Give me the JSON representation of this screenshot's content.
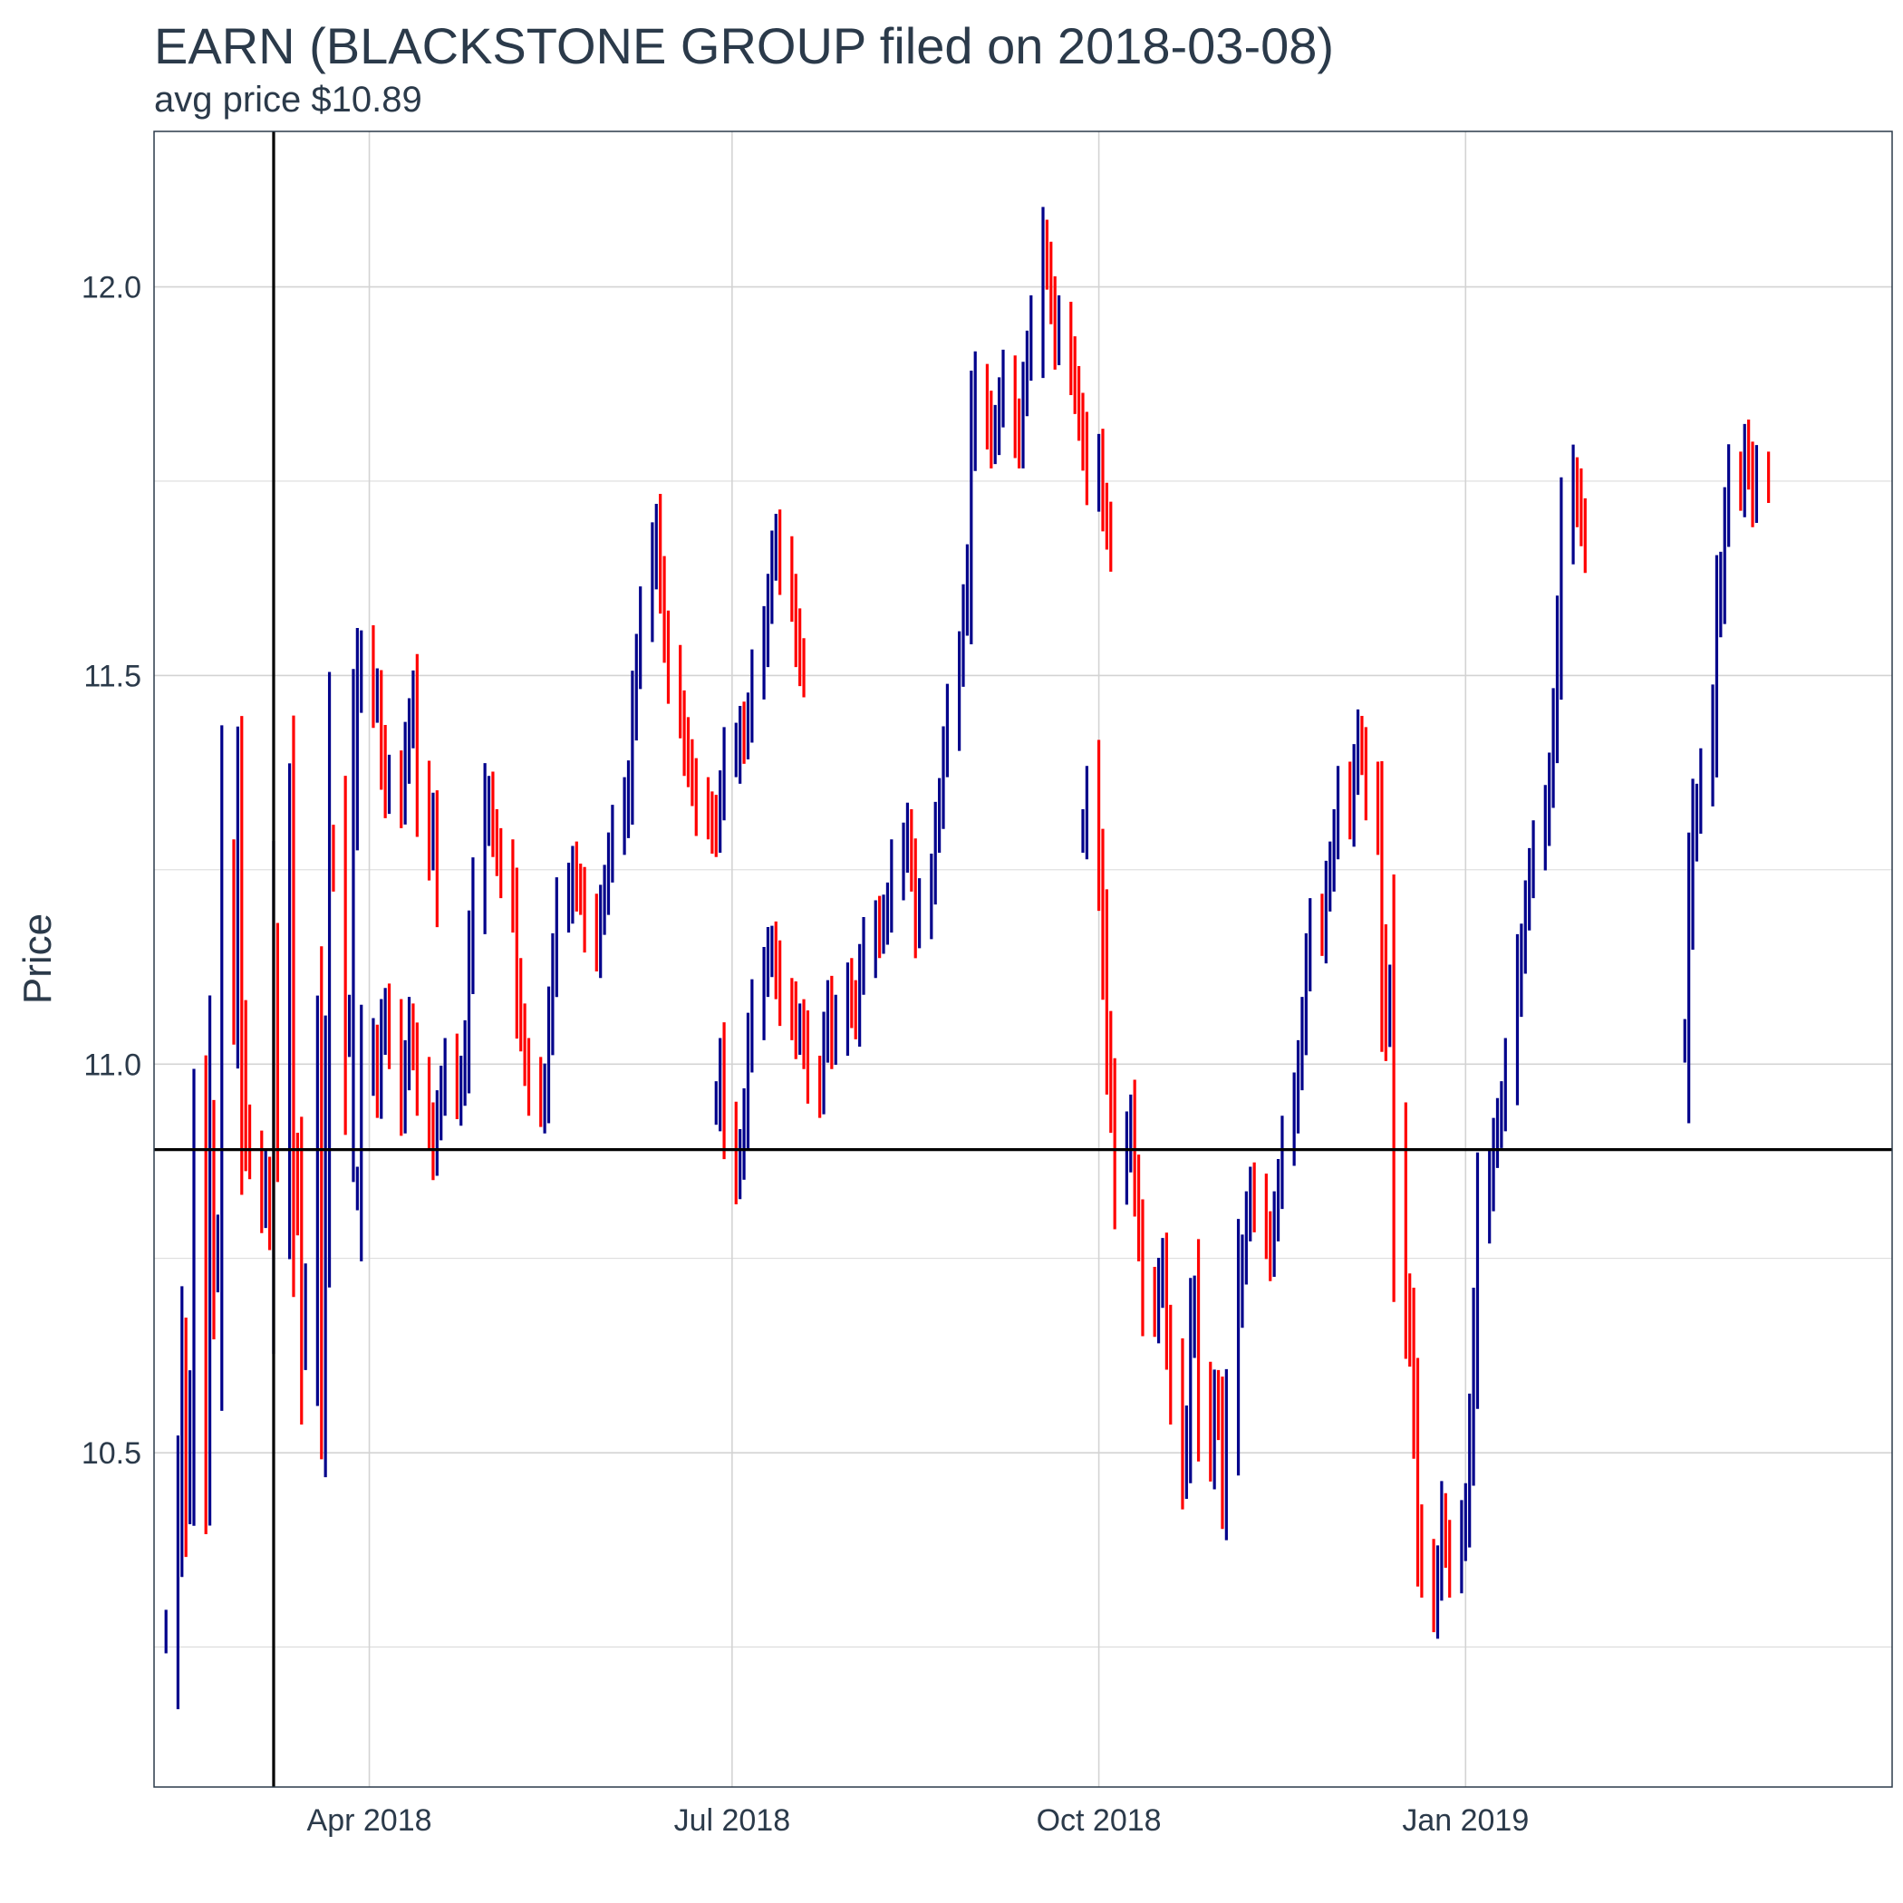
{
  "chart_data": {
    "type": "ohlc",
    "title": "EARN (BLACKSTONE GROUP filed on 2018-03-08)",
    "subtitle": "avg price $10.89",
    "ylabel": "Price",
    "xlabel": "",
    "x_range": [
      "2018-02-06",
      "2019-04-18"
    ],
    "ylim": [
      10.07,
      12.2
    ],
    "y_ticks": [
      10.5,
      11.0,
      11.5,
      12.0
    ],
    "y_tick_labels": [
      "10.5",
      "11.0",
      "11.5",
      "12.0"
    ],
    "x_ticks": [
      "2018-04-01",
      "2018-07-01",
      "2018-10-01",
      "2019-01-01"
    ],
    "x_tick_labels": [
      "Apr 2018",
      "Jul 2018",
      "Oct 2018",
      "Jan 2019"
    ],
    "grid": true,
    "vline_date": "2018-03-08",
    "hline_value": 10.89,
    "colors": {
      "up": "#00008b",
      "down": "#ff0000",
      "reference": "#000000",
      "grid": "#d3d3d3",
      "frame": "#2b3a4a"
    },
    "segments": [
      {
        "start": "2018-02-09",
        "values": [
          10.27,
          10.43,
          10.6,
          10.46,
          10.55,
          10.85,
          10.57,
          10.88,
          10.74,
          10.77,
          11.22,
          11.1,
          11.3,
          11.02,
          10.92,
          10.88,
          10.82,
          10.85,
          10.8,
          11.1,
          10.93,
          11.22,
          10.88,
          10.82,
          10.64,
          10.71,
          10.95,
          10.65,
          10.92,
          11.28,
          11.25,
          11.04,
          11.05,
          11.35,
          11.48,
          11.53,
          11.47,
          11.47,
          11.4,
          11.35,
          11.37,
          11.34,
          11.4,
          11.44,
          11.47,
          11.35,
          11.28,
          11.31,
          11.23
        ]
      },
      {
        "start": "2018-03-29",
        "values": [
          10.84,
          10.99,
          11.02,
          10.97,
          11.04,
          11.07,
          11.03,
          10.95,
          11.0,
          11.05,
          11.02,
          10.97,
          10.92,
          10.89,
          10.93,
          10.97,
          11.0,
          10.96,
          10.98,
          11.02,
          11.14,
          11.22,
          11.32,
          11.34,
          11.3,
          11.27,
          11.25,
          11.2,
          11.1,
          11.05,
          11.0,
          10.97,
          10.95,
          10.97,
          11.05,
          11.13,
          11.2,
          11.22,
          11.25,
          11.23,
          11.22,
          11.18,
          11.15,
          11.2,
          11.22,
          11.27,
          11.3,
          11.33,
          11.36,
          11.45,
          11.52,
          11.58,
          11.65,
          11.69,
          11.62,
          11.55,
          11.5,
          11.45,
          11.41,
          11.39,
          11.36,
          11.33,
          11.32,
          11.31,
          11.3,
          11.35,
          11.4,
          11.4,
          11.43,
          11.42,
          11.45,
          11.5,
          11.55,
          11.6,
          11.65,
          11.68,
          11.64,
          11.6,
          11.55,
          11.52,
          11.5
        ]
      },
      {
        "start": "2018-06-27",
        "values": [
          10.95,
          11.0,
          10.92,
          10.86,
          10.88,
          10.94,
          11.02,
          11.07,
          11.12,
          11.14,
          11.15,
          11.12,
          11.08,
          11.07,
          11.04,
          11.05,
          11.03,
          10.98,
          10.97,
          11.03,
          11.08,
          11.03,
          11.05,
          11.1,
          11.08,
          11.06,
          11.12,
          11.15,
          11.18,
          11.17,
          11.19,
          11.2,
          11.25,
          11.28,
          11.3,
          11.25,
          11.18,
          11.2,
          11.24,
          11.3,
          11.34,
          11.4,
          11.45,
          11.52,
          11.58,
          11.64,
          11.8,
          11.87,
          11.83,
          11.8,
          11.82,
          11.85,
          11.88,
          11.82,
          11.8,
          11.87,
          11.91,
          11.95,
          12.05,
          12.03,
          11.98,
          11.93,
          11.95,
          11.9,
          11.87,
          11.83,
          11.8,
          11.75,
          11.78,
          11.72,
          11.69,
          11.67
        ]
      },
      {
        "start": "2018-09-27",
        "values": [
          11.3,
          11.35,
          11.25,
          11.15,
          11.03,
          10.95,
          10.85,
          10.9,
          10.93,
          10.85,
          10.78,
          10.7,
          10.68,
          10.72,
          10.74,
          10.65,
          10.58,
          10.48,
          10.53,
          10.65,
          10.7,
          10.57,
          10.5,
          10.57,
          10.55,
          10.45,
          10.55,
          10.7,
          10.75,
          10.8,
          10.84,
          10.82,
          10.78,
          10.76,
          10.8,
          10.85,
          10.9,
          10.95,
          11.0,
          11.05,
          11.13,
          11.18,
          11.17,
          11.23,
          11.25,
          11.3,
          11.35,
          11.32,
          11.38,
          11.42,
          11.4,
          11.35,
          11.3,
          11.13,
          11.05,
          11.1,
          10.85,
          10.7,
          10.65,
          10.55,
          10.4,
          10.35,
          10.3,
          10.35,
          10.42,
          10.38,
          10.35,
          10.4,
          10.43,
          10.52,
          10.65,
          10.8,
          10.85,
          10.9,
          10.92,
          10.95,
          11.0,
          11.1,
          11.15,
          11.2,
          11.25,
          11.28,
          11.32,
          11.37,
          11.44,
          11.55,
          11.68,
          11.75,
          11.73,
          11.7,
          11.66
        ]
      },
      {
        "start": "2019-02-25",
        "values": [
          11.03,
          11.2,
          11.3,
          11.33,
          11.37,
          11.45,
          11.58,
          11.62,
          11.7,
          11.76,
          11.74,
          11.79,
          11.77,
          11.73,
          11.76,
          11.75
        ]
      }
    ]
  }
}
